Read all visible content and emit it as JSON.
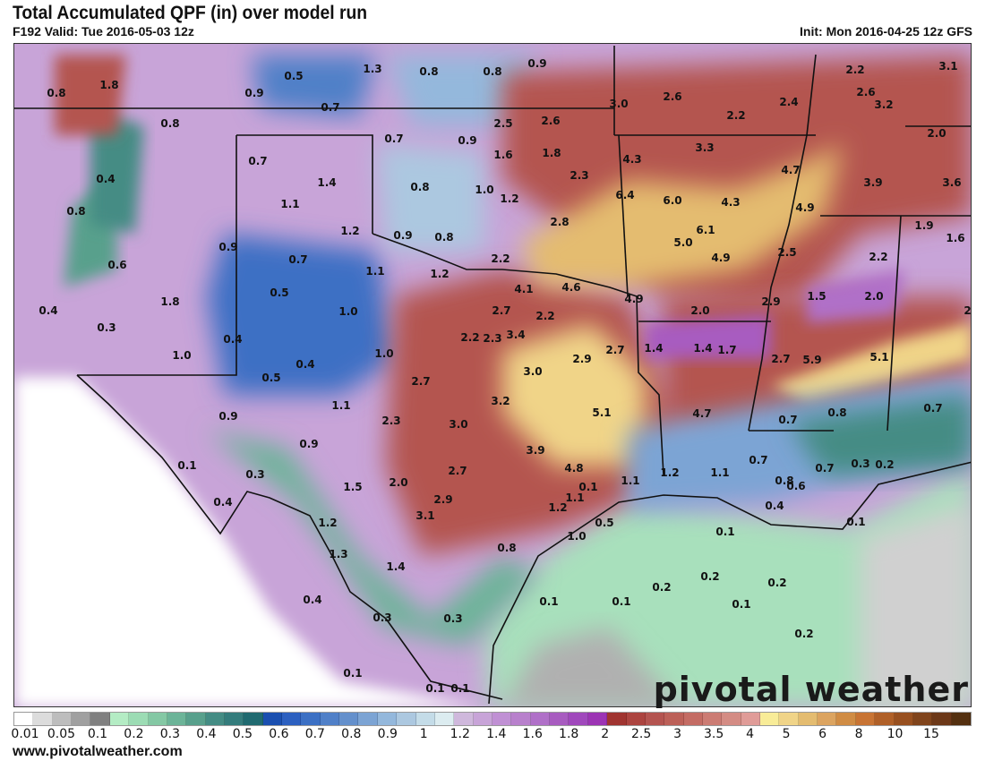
{
  "header": {
    "title": "Total Accumulated QPF (in) over model run",
    "valid": "F192 Valid: Tue 2016-05-03 12z",
    "init": "Init: Mon 2016-04-25 12z GFS"
  },
  "map": {
    "field": "Total accumulated QPF",
    "units": "in",
    "point_values": [
      "0.8",
      "1.8",
      "0.5",
      "0.9",
      "1.3",
      "0.8",
      "0.8",
      "0.9",
      "0.7",
      "0.8",
      "0.7",
      "0.9",
      "2.5",
      "2.6",
      "3.0",
      "2.6",
      "2.2",
      "2.4",
      "2.2",
      "2.6",
      "3.2",
      "3.1",
      "2.0",
      "0.4",
      "0.7",
      "1.4",
      "0.8",
      "1.0",
      "1.2",
      "1.6",
      "1.8",
      "2.3",
      "4.3",
      "3.3",
      "4.7",
      "3.9",
      "3.6",
      "0.8",
      "1.1",
      "6.4",
      "6.0",
      "4.3",
      "4.9",
      "1.2",
      "0.9",
      "0.8",
      "2.8",
      "6.1",
      "5.0",
      "4.9",
      "1.9",
      "1.6",
      "2.2",
      "0.6",
      "0.9",
      "0.7",
      "1.1",
      "1.2",
      "2.5",
      "2.2",
      "0.5",
      "4.1",
      "4.6",
      "4.9",
      "1.5",
      "2.0",
      "1.0",
      "1.8",
      "0.4",
      "0.3",
      "2.0",
      "2.9",
      "2.7",
      "2.7",
      "2.2",
      "2.2",
      "2.3",
      "3.4",
      "1.4",
      "1.4",
      "1.7",
      "0.4",
      "1.0",
      "1.0",
      "0.4",
      "2.7",
      "2.9",
      "3.0",
      "2.7",
      "5.9",
      "5.1",
      "0.5",
      "2.7",
      "1.1",
      "2.3",
      "3.0",
      "0.9",
      "0.9",
      "0.1",
      "0.3",
      "2.7",
      "2.0",
      "2.9",
      "3.1",
      "1.5",
      "0.4",
      "1.2",
      "1.3",
      "1.4",
      "0.4",
      "0.3",
      "0.3",
      "0.1",
      "0.1",
      "0.1",
      "3.2",
      "5.1",
      "4.7",
      "3.9",
      "4.8",
      "1.1",
      "1.2",
      "1.1",
      "0.7",
      "0.7",
      "0.8",
      "0.7",
      "0.8",
      "0.6",
      "0.4",
      "0.7",
      "0.3",
      "0.2",
      "0.1",
      "1.1",
      "1.2",
      "0.5",
      "1.0",
      "0.8",
      "0.1",
      "0.1",
      "0.2",
      "0.2",
      "0.2",
      "0.1",
      "0.1",
      "0.1",
      "0.2"
    ]
  },
  "colorbar": {
    "colors": [
      "#ffffff",
      "#dcdcdc",
      "#bdbdbd",
      "#a0a0a0",
      "#808080",
      "#b4ecc4",
      "#9cdcb4",
      "#84c8a4",
      "#6cb498",
      "#58a08c",
      "#448c84",
      "#347c7c",
      "#206a70",
      "#1a4fb0",
      "#2c60c0",
      "#3c70c4",
      "#5080c8",
      "#6490cc",
      "#7ca4d4",
      "#94b8dc",
      "#acc8e0",
      "#c4dce8",
      "#dcecf0",
      "#cfb8dc",
      "#c8a4d8",
      "#c090d4",
      "#b880cc",
      "#b070c8",
      "#a85cc0",
      "#a048bc",
      "#9c34b4",
      "#a03430",
      "#ac4440",
      "#b45450",
      "#bc6058",
      "#c46c64",
      "#cc7c74",
      "#d48c84",
      "#e09c98",
      "#f8ec98",
      "#f0d488",
      "#e4bc70",
      "#dca460",
      "#d08c44",
      "#c87434",
      "#b06028",
      "#985020",
      "#80441c",
      "#6c3818",
      "#543010"
    ],
    "labels": [
      "0.01",
      "0.05",
      "0.1",
      "0.2",
      "0.3",
      "0.4",
      "0.5",
      "0.6",
      "0.7",
      "0.8",
      "0.9",
      "1",
      "1.2",
      "1.4",
      "1.6",
      "1.8",
      "2",
      "2.5",
      "3",
      "3.5",
      "4",
      "5",
      "6",
      "8",
      "10",
      "15"
    ]
  },
  "footer": {
    "url": "www.pivotalweather.com",
    "logo": "pivotal weather"
  }
}
